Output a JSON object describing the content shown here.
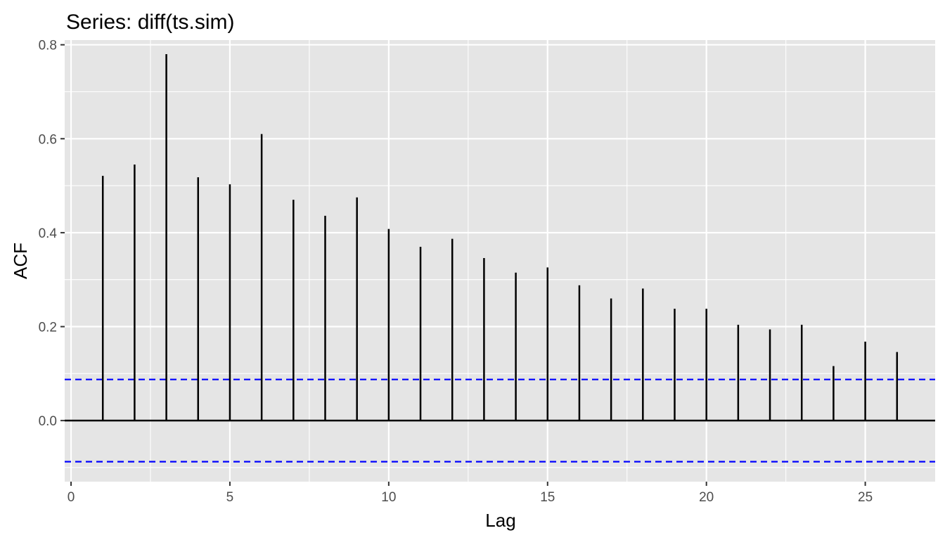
{
  "chart_data": {
    "type": "bar",
    "title": "Series: diff(ts.sim)",
    "xlabel": "Lag",
    "ylabel": "ACF",
    "xlim": [
      -0.2,
      27.2
    ],
    "ylim": [
      -0.13,
      0.81
    ],
    "x_ticks": [
      0,
      5,
      10,
      15,
      20,
      25
    ],
    "y_ticks": [
      0.0,
      0.2,
      0.4,
      0.6,
      0.8
    ],
    "y_tick_labels": [
      "0.0",
      "0.2",
      "0.4",
      "0.6",
      "0.8"
    ],
    "grid": true,
    "confidence_bound": 0.0875,
    "confidence_color": "#0000ff",
    "bar_color": "#000000",
    "panel_color": "#e5e5e5",
    "lags": [
      1,
      2,
      3,
      4,
      5,
      6,
      7,
      8,
      9,
      10,
      11,
      12,
      13,
      14,
      15,
      16,
      17,
      18,
      19,
      20,
      21,
      22,
      23,
      24,
      25,
      26
    ],
    "values": [
      0.521,
      0.545,
      0.78,
      0.518,
      0.503,
      0.61,
      0.47,
      0.436,
      0.475,
      0.408,
      0.37,
      0.387,
      0.346,
      0.315,
      0.326,
      0.288,
      0.26,
      0.281,
      0.238,
      0.238,
      0.204,
      0.194,
      0.204,
      0.116,
      0.168,
      0.146
    ]
  }
}
